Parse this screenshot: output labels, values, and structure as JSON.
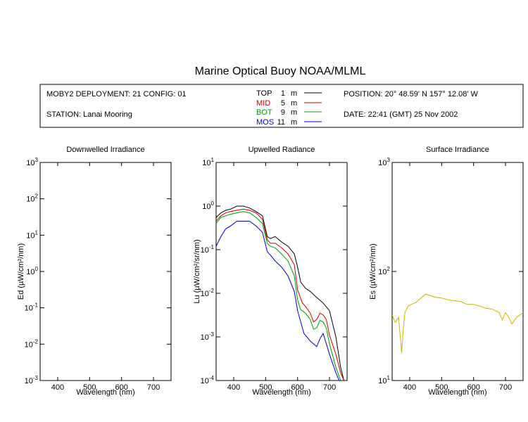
{
  "title": "Marine Optical Buoy NOAA/MLML",
  "info": {
    "deployment": "MOBY2 DEPLOYMENT: 21 CONFIG: 01",
    "station": "STATION: Lanai Mooring",
    "position": "POSITION: 20° 48.59' N   157° 12.08' W",
    "date": "DATE: 22:41 (GMT) 25 Nov 2002"
  },
  "legend": [
    {
      "label": "TOP",
      "depth": "1",
      "unit": "m",
      "color": "#000000"
    },
    {
      "label": "MID",
      "depth": "5",
      "unit": "m",
      "color": "#cc0000"
    },
    {
      "label": "BOT",
      "depth": "9",
      "unit": "m",
      "color": "#009900"
    },
    {
      "label": "MOS",
      "depth": "11",
      "unit": "m",
      "color": "#0000cc"
    }
  ],
  "chart_data": [
    {
      "type": "line",
      "title": "Downwelled Irradiance",
      "xlabel": "Wavelength (nm)",
      "ylabel": "Ed  (µW/cm²/nm)",
      "xlim": [
        345,
        755
      ],
      "ylim_log10": [
        -3,
        3
      ],
      "yscale": "log",
      "xticks": [
        400,
        500,
        600,
        700
      ],
      "ytick_exponents": [
        -3,
        -2,
        -1,
        0,
        1,
        2,
        3
      ],
      "series": []
    },
    {
      "type": "line",
      "title": "Upwelled Radiance",
      "xlabel": "Wavelength (nm)",
      "ylabel": "Lu  (µW/cm²/sr/nm)",
      "xlim": [
        345,
        755
      ],
      "ylim_log10": [
        -4,
        1
      ],
      "yscale": "log",
      "xticks": [
        400,
        500,
        600,
        700
      ],
      "ytick_exponents": [
        -4,
        -3,
        -2,
        -1,
        0,
        1
      ],
      "series": [
        {
          "name": "TOP",
          "color": "#000000",
          "x": [
            345,
            360,
            375,
            390,
            410,
            430,
            450,
            470,
            490,
            505,
            515,
            530,
            550,
            570,
            590,
            600,
            610,
            625,
            640,
            660,
            680,
            700,
            720,
            735,
            745
          ],
          "y": [
            0.55,
            0.7,
            0.8,
            0.85,
            1.0,
            1.0,
            0.9,
            0.75,
            0.6,
            0.2,
            0.18,
            0.2,
            0.15,
            0.12,
            0.08,
            0.04,
            0.018,
            0.013,
            0.011,
            0.008,
            0.006,
            0.004,
            0.001,
            0.0002,
            0.0001
          ]
        },
        {
          "name": "MID",
          "color": "#cc0000",
          "x": [
            345,
            360,
            375,
            390,
            410,
            430,
            450,
            470,
            490,
            505,
            515,
            530,
            550,
            570,
            590,
            600,
            615,
            625,
            640,
            650,
            660,
            670,
            680,
            690,
            700,
            720,
            735,
            745
          ],
          "y": [
            0.45,
            0.6,
            0.7,
            0.75,
            0.8,
            0.85,
            0.8,
            0.7,
            0.5,
            0.17,
            0.14,
            0.14,
            0.11,
            0.08,
            0.045,
            0.012,
            0.006,
            0.005,
            0.0035,
            0.0022,
            0.0025,
            0.0035,
            0.0032,
            0.0025,
            0.0011,
            0.0004,
            0.00015,
            0.0001
          ]
        },
        {
          "name": "BOT",
          "color": "#009900",
          "x": [
            345,
            360,
            375,
            390,
            410,
            430,
            450,
            470,
            490,
            505,
            515,
            530,
            550,
            570,
            590,
            600,
            610,
            625,
            640,
            650,
            660,
            670,
            680,
            690,
            700,
            720,
            735
          ],
          "y": [
            0.4,
            0.55,
            0.6,
            0.65,
            0.7,
            0.75,
            0.7,
            0.55,
            0.4,
            0.14,
            0.12,
            0.11,
            0.08,
            0.055,
            0.025,
            0.007,
            0.0042,
            0.0035,
            0.0025,
            0.0015,
            0.0016,
            0.0024,
            0.0022,
            0.0016,
            0.0007,
            0.0002,
            0.0001
          ]
        },
        {
          "name": "MOS",
          "color": "#0000cc",
          "x": [
            345,
            360,
            375,
            390,
            410,
            430,
            450,
            470,
            490,
            505,
            515,
            530,
            550,
            570,
            590,
            600,
            620,
            640,
            660,
            670,
            680,
            690,
            700,
            720,
            730
          ],
          "y": [
            0.12,
            0.2,
            0.3,
            0.35,
            0.45,
            0.45,
            0.45,
            0.35,
            0.25,
            0.09,
            0.075,
            0.055,
            0.04,
            0.025,
            0.011,
            0.004,
            0.0012,
            0.0008,
            0.0006,
            0.0009,
            0.0012,
            0.0007,
            0.0004,
            0.00015,
            0.0001
          ]
        }
      ]
    },
    {
      "type": "line",
      "title": "Surface Irradiance",
      "xlabel": "Wavelength (nm)",
      "ylabel": "Es  (µW/cm²/nm)",
      "xlim": [
        345,
        755
      ],
      "ylim_log10": [
        1,
        3
      ],
      "yscale": "log",
      "xticks": [
        400,
        500,
        600,
        700
      ],
      "ytick_exponents": [
        1,
        2,
        3
      ],
      "series": [
        {
          "name": "Es",
          "color": "#c8b400",
          "x": [
            345,
            355,
            365,
            375,
            380,
            385,
            395,
            405,
            420,
            435,
            450,
            465,
            480,
            500,
            520,
            540,
            560,
            580,
            600,
            620,
            640,
            660,
            680,
            690,
            700,
            710,
            720,
            735,
            745,
            755
          ],
          "y": [
            40,
            34,
            38,
            18,
            30,
            42,
            48,
            50,
            52,
            57,
            62,
            60,
            58,
            57,
            55,
            54,
            53,
            50,
            50,
            48,
            46,
            45,
            42,
            36,
            42,
            38,
            33,
            38,
            40,
            42
          ]
        }
      ]
    }
  ]
}
